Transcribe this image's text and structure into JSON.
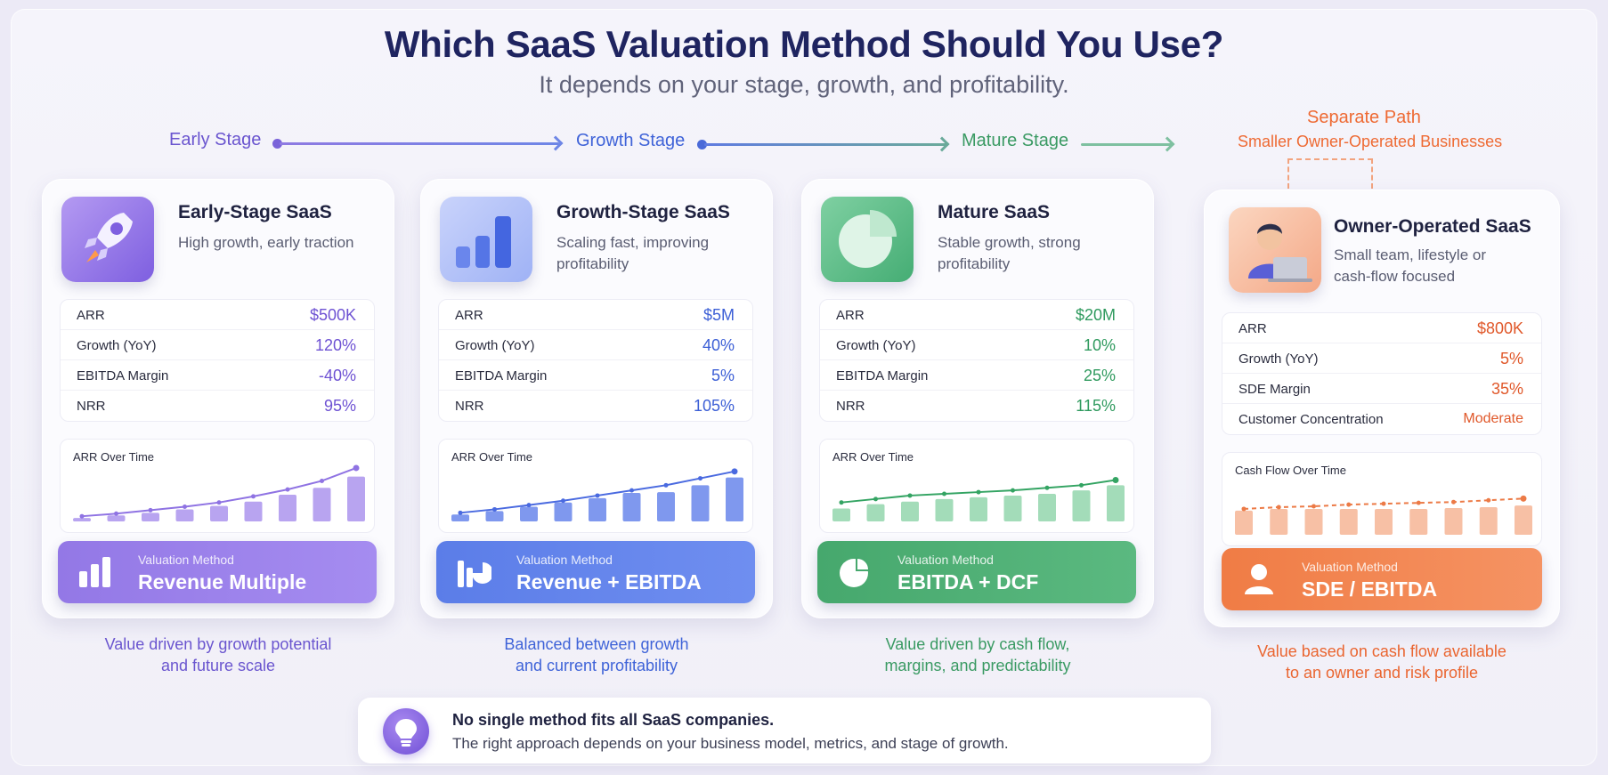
{
  "header": {
    "title": "Which SaaS Valuation Method Should You Use?",
    "subtitle": "It depends on your stage, growth, and profitability."
  },
  "stages": [
    {
      "label": "Early Stage",
      "color": "#6a55cf"
    },
    {
      "label": "Growth Stage",
      "color": "#3f63d8"
    },
    {
      "label": "Mature Stage",
      "color": "#3a9a63"
    }
  ],
  "separate": {
    "title": "Separate Path",
    "subtitle": "Smaller Owner-Operated Businesses"
  },
  "cards": [
    {
      "title": "Early-Stage SaaS",
      "subtitle": "High growth, early traction",
      "icon": "rocket-icon",
      "accent": "#6e52d3",
      "metrics": [
        {
          "label": "ARR",
          "value": "$500K"
        },
        {
          "label": "Growth (YoY)",
          "value": "120%"
        },
        {
          "label": "EBITDA Margin",
          "value": "-40%"
        },
        {
          "label": "NRR",
          "value": "95%"
        }
      ],
      "chart_title": "ARR Over Time",
      "method_label": "Valuation Method",
      "method": "Revenue Multiple",
      "footer": [
        "Value driven by growth potential",
        "and future scale"
      ]
    },
    {
      "title": "Growth-Stage SaaS",
      "subtitle": "Scaling fast, improving profitability",
      "icon": "bar-chart-icon",
      "accent": "#3c5fd6",
      "metrics": [
        {
          "label": "ARR",
          "value": "$5M"
        },
        {
          "label": "Growth (YoY)",
          "value": "40%"
        },
        {
          "label": "EBITDA Margin",
          "value": "5%"
        },
        {
          "label": "NRR",
          "value": "105%"
        }
      ],
      "chart_title": "ARR Over Time",
      "method_label": "Valuation Method",
      "method": "Revenue + EBITDA",
      "footer": [
        "Balanced between growth",
        "and current profitability"
      ]
    },
    {
      "title": "Mature SaaS",
      "subtitle": "Stable growth, strong profitability",
      "icon": "pie-chart-icon",
      "accent": "#2f9a5e",
      "metrics": [
        {
          "label": "ARR",
          "value": "$20M"
        },
        {
          "label": "Growth (YoY)",
          "value": "10%"
        },
        {
          "label": "EBITDA Margin",
          "value": "25%"
        },
        {
          "label": "NRR",
          "value": "115%"
        }
      ],
      "chart_title": "ARR Over Time",
      "method_label": "Valuation Method",
      "method": "EBITDA + DCF",
      "footer": [
        "Value driven by cash flow,",
        "margins, and predictability"
      ]
    },
    {
      "title": "Owner-Operated SaaS",
      "subtitle": "Small team, lifestyle or cash-flow focused",
      "icon": "owner-avatar-icon",
      "accent": "#e8642c",
      "metrics": [
        {
          "label": "ARR",
          "value": "$800K"
        },
        {
          "label": "Growth (YoY)",
          "value": "5%"
        },
        {
          "label": "SDE Margin",
          "value": "35%"
        },
        {
          "label": "Customer Concentration",
          "value": "Moderate"
        }
      ],
      "chart_title": "Cash Flow Over Time",
      "method_label": "Valuation Method",
      "method": "SDE / EBITDA",
      "footer": [
        "Value based on cash flow available",
        "to an owner and risk profile"
      ]
    }
  ],
  "mini_charts": [
    {
      "bars": [
        4,
        7,
        10,
        14,
        18,
        23,
        31,
        39,
        52
      ],
      "line": [
        6,
        9,
        13,
        17,
        22,
        29,
        37,
        47,
        62
      ]
    },
    {
      "bars": [
        8,
        12,
        17,
        22,
        27,
        33,
        34,
        42,
        51
      ],
      "line": [
        10,
        14,
        19,
        24,
        30,
        36,
        42,
        50,
        58
      ]
    },
    {
      "bars": [
        15,
        20,
        23,
        26,
        28,
        30,
        32,
        36,
        42
      ],
      "line": [
        22,
        26,
        30,
        32,
        34,
        36,
        39,
        42,
        48
      ]
    },
    {
      "bars": [
        28,
        30,
        30,
        30,
        30,
        30,
        31,
        32,
        34
      ],
      "line": [
        30,
        32,
        33,
        35,
        36,
        37,
        38,
        40,
        42
      ]
    }
  ],
  "bottom": {
    "title": "No single method fits all SaaS companies.",
    "text": "The right approach depends on your business model, metrics, and stage of growth."
  }
}
